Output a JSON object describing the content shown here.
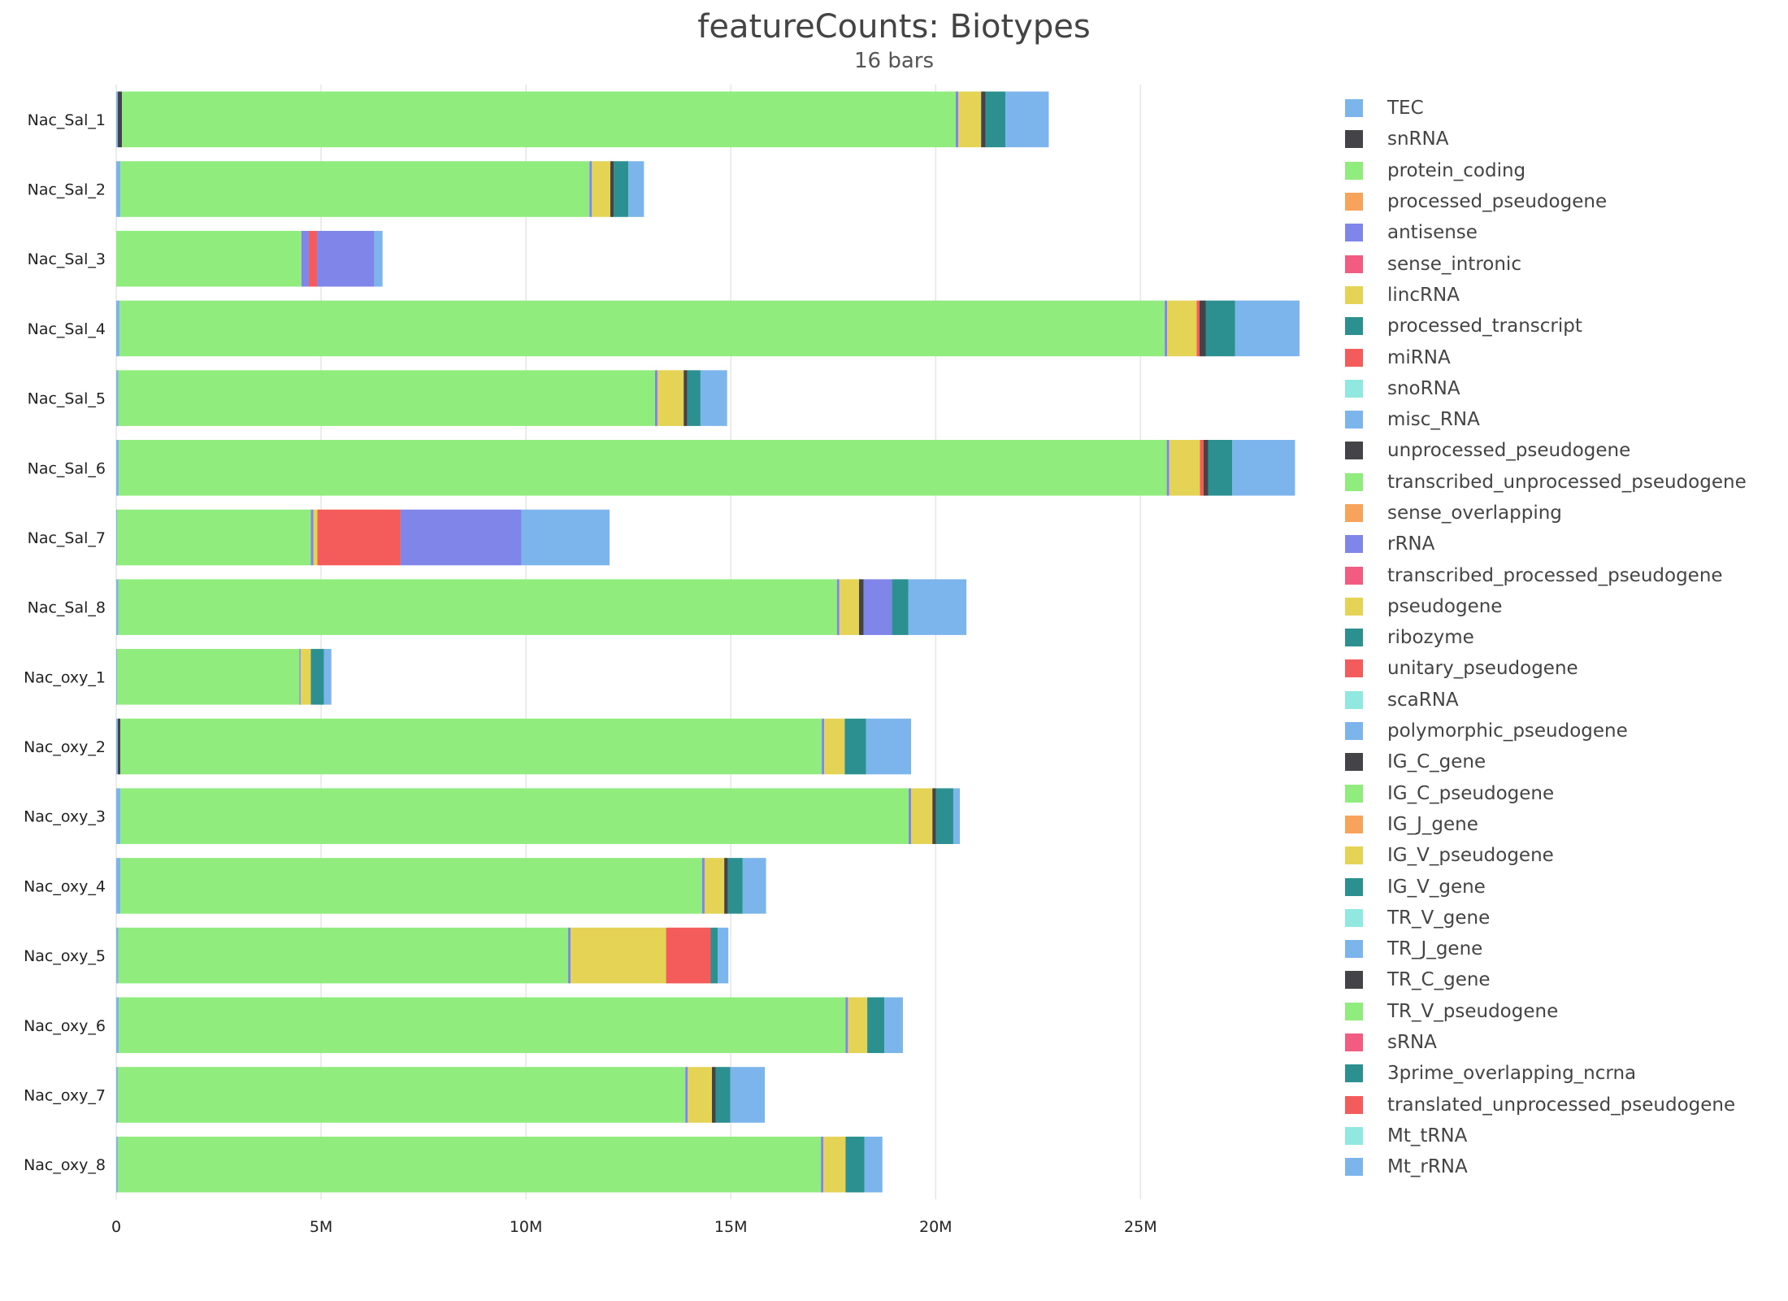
{
  "chart_data": {
    "type": "bar",
    "orientation": "horizontal",
    "stacked": true,
    "title": "featureCounts: Biotypes",
    "subtitle": "16 bars",
    "xlim": [
      0,
      29000000
    ],
    "xticks": [
      {
        "value": 0,
        "label": "0"
      },
      {
        "value": 5000000,
        "label": "5M"
      },
      {
        "value": 10000000,
        "label": "10M"
      },
      {
        "value": 15000000,
        "label": "15M"
      },
      {
        "value": 20000000,
        "label": "20M"
      },
      {
        "value": 25000000,
        "label": "25M"
      }
    ],
    "grid": true,
    "legend_position": "right",
    "categories": [
      "Nac_Sal_1",
      "Nac_Sal_2",
      "Nac_Sal_3",
      "Nac_Sal_4",
      "Nac_Sal_5",
      "Nac_Sal_6",
      "Nac_Sal_7",
      "Nac_Sal_8",
      "Nac_oxy_1",
      "Nac_oxy_2",
      "Nac_oxy_3",
      "Nac_oxy_4",
      "Nac_oxy_5",
      "Nac_oxy_6",
      "Nac_oxy_7",
      "Nac_oxy_8"
    ],
    "series": [
      {
        "name": "TEC",
        "color": "#7cb5ec",
        "values": [
          40000,
          100000,
          0,
          80000,
          50000,
          60000,
          20000,
          50000,
          20000,
          40000,
          100000,
          100000,
          50000,
          60000,
          40000,
          40000
        ]
      },
      {
        "name": "snRNA",
        "color": "#434348",
        "values": [
          100000,
          0,
          0,
          0,
          0,
          0,
          0,
          0,
          0,
          60000,
          0,
          0,
          0,
          0,
          0,
          0
        ]
      },
      {
        "name": "protein_coding",
        "color": "#90ed7d",
        "values": [
          20350000,
          11450000,
          4520000,
          25510000,
          13100000,
          25580000,
          4730000,
          17540000,
          4450000,
          17120000,
          19240000,
          14200000,
          10980000,
          17740000,
          13850000,
          17160000
        ]
      },
      {
        "name": "processed_pseudogene",
        "color": "#f7a35c",
        "values": [
          0,
          0,
          0,
          0,
          0,
          0,
          0,
          0,
          0,
          0,
          0,
          0,
          0,
          0,
          0,
          0
        ]
      },
      {
        "name": "antisense",
        "color": "#8085e9",
        "values": [
          60000,
          60000,
          180000,
          60000,
          60000,
          60000,
          60000,
          60000,
          30000,
          60000,
          60000,
          60000,
          60000,
          60000,
          60000,
          60000
        ]
      },
      {
        "name": "sense_intronic",
        "color": "#f15c80",
        "values": [
          0,
          0,
          0,
          0,
          0,
          0,
          0,
          0,
          0,
          0,
          0,
          0,
          0,
          0,
          0,
          0
        ]
      },
      {
        "name": "lincRNA",
        "color": "#e4d354",
        "values": [
          560000,
          450000,
          0,
          720000,
          640000,
          750000,
          100000,
          480000,
          250000,
          500000,
          520000,
          480000,
          2330000,
          470000,
          590000,
          540000
        ]
      },
      {
        "name": "processed_transcript",
        "color": "#2b908f",
        "values": [
          0,
          0,
          0,
          0,
          0,
          0,
          0,
          0,
          0,
          0,
          0,
          0,
          0,
          0,
          0,
          0
        ]
      },
      {
        "name": "miRNA",
        "color": "#f45b5b",
        "values": [
          0,
          0,
          200000,
          70000,
          0,
          90000,
          2030000,
          0,
          0,
          0,
          0,
          0,
          1090000,
          0,
          0,
          0
        ]
      },
      {
        "name": "snoRNA",
        "color": "#91e8e1",
        "values": [
          0,
          0,
          0,
          0,
          0,
          0,
          0,
          0,
          0,
          0,
          0,
          0,
          0,
          0,
          0,
          0
        ]
      },
      {
        "name": "misc_RNA",
        "color": "#7cb5ec",
        "values": [
          0,
          0,
          0,
          0,
          0,
          0,
          0,
          0,
          0,
          0,
          0,
          0,
          0,
          0,
          0,
          0
        ]
      },
      {
        "name": "unprocessed_pseudogene",
        "color": "#434348",
        "values": [
          110000,
          80000,
          0,
          150000,
          90000,
          110000,
          0,
          110000,
          0,
          0,
          90000,
          90000,
          0,
          0,
          90000,
          0
        ]
      },
      {
        "name": "transcribed_unprocessed_pseudogene",
        "color": "#90ed7d",
        "values": [
          0,
          0,
          0,
          0,
          0,
          0,
          0,
          0,
          0,
          0,
          0,
          0,
          0,
          0,
          0,
          0
        ]
      },
      {
        "name": "sense_overlapping",
        "color": "#f7a35c",
        "values": [
          0,
          0,
          0,
          0,
          0,
          0,
          0,
          0,
          0,
          0,
          0,
          0,
          0,
          0,
          0,
          0
        ]
      },
      {
        "name": "rRNA",
        "color": "#8085e9",
        "values": [
          0,
          0,
          1400000,
          0,
          0,
          0,
          2950000,
          690000,
          0,
          0,
          0,
          0,
          0,
          0,
          0,
          0
        ]
      },
      {
        "name": "transcribed_processed_pseudogene",
        "color": "#f15c80",
        "values": [
          0,
          0,
          0,
          0,
          0,
          0,
          0,
          0,
          0,
          0,
          0,
          0,
          0,
          0,
          0,
          0
        ]
      },
      {
        "name": "pseudogene",
        "color": "#e4d354",
        "values": [
          0,
          0,
          0,
          0,
          0,
          0,
          0,
          0,
          0,
          0,
          0,
          0,
          0,
          0,
          0,
          0
        ]
      },
      {
        "name": "ribozyme",
        "color": "#2b908f",
        "values": [
          0,
          0,
          0,
          0,
          0,
          0,
          0,
          0,
          0,
          0,
          0,
          0,
          0,
          0,
          0,
          0
        ]
      },
      {
        "name": "unitary_pseudogene",
        "color": "#f45b5b",
        "values": [
          0,
          0,
          0,
          0,
          0,
          0,
          0,
          0,
          0,
          0,
          0,
          0,
          0,
          0,
          0,
          0
        ]
      },
      {
        "name": "scaRNA",
        "color": "#91e8e1",
        "values": [
          0,
          0,
          0,
          0,
          0,
          0,
          0,
          0,
          0,
          0,
          0,
          0,
          0,
          0,
          0,
          0
        ]
      },
      {
        "name": "polymorphic_pseudogene",
        "color": "#7cb5ec",
        "values": [
          0,
          0,
          0,
          0,
          0,
          0,
          0,
          0,
          0,
          0,
          0,
          0,
          0,
          0,
          0,
          0
        ]
      },
      {
        "name": "IG_C_gene",
        "color": "#434348",
        "values": [
          0,
          0,
          0,
          0,
          0,
          0,
          0,
          0,
          0,
          0,
          0,
          0,
          0,
          0,
          0,
          0
        ]
      },
      {
        "name": "IG_C_pseudogene",
        "color": "#90ed7d",
        "values": [
          0,
          0,
          0,
          0,
          0,
          0,
          0,
          0,
          0,
          0,
          0,
          0,
          0,
          0,
          0,
          0
        ]
      },
      {
        "name": "IG_J_gene",
        "color": "#f7a35c",
        "values": [
          0,
          0,
          0,
          0,
          0,
          0,
          0,
          0,
          0,
          0,
          0,
          0,
          0,
          0,
          0,
          0
        ]
      },
      {
        "name": "IG_V_pseudogene",
        "color": "#e4d354",
        "values": [
          0,
          0,
          0,
          0,
          0,
          0,
          0,
          0,
          0,
          0,
          0,
          0,
          0,
          0,
          0,
          0
        ]
      },
      {
        "name": "IG_V_gene",
        "color": "#2b908f",
        "values": [
          0,
          0,
          0,
          0,
          0,
          0,
          0,
          0,
          0,
          0,
          0,
          0,
          0,
          0,
          0,
          0
        ]
      },
      {
        "name": "TR_V_gene",
        "color": "#91e8e1",
        "values": [
          0,
          0,
          0,
          0,
          0,
          0,
          0,
          0,
          0,
          0,
          0,
          0,
          0,
          0,
          0,
          0
        ]
      },
      {
        "name": "TR_J_gene",
        "color": "#7cb5ec",
        "values": [
          0,
          0,
          0,
          0,
          0,
          0,
          0,
          0,
          0,
          0,
          0,
          0,
          0,
          0,
          0,
          0
        ]
      },
      {
        "name": "TR_C_gene",
        "color": "#434348",
        "values": [
          0,
          0,
          0,
          0,
          0,
          0,
          0,
          0,
          0,
          0,
          0,
          0,
          0,
          0,
          0,
          0
        ]
      },
      {
        "name": "TR_V_pseudogene",
        "color": "#90ed7d",
        "values": [
          0,
          0,
          0,
          0,
          0,
          0,
          0,
          0,
          0,
          0,
          0,
          0,
          0,
          0,
          0,
          0
        ]
      },
      {
        "name": "sRNA",
        "color": "#f15c80",
        "values": [
          0,
          0,
          0,
          0,
          0,
          0,
          0,
          0,
          0,
          0,
          0,
          0,
          0,
          0,
          0,
          0
        ]
      },
      {
        "name": "3prime_overlapping_ncrna",
        "color": "#2b908f",
        "values": [
          480000,
          360000,
          0,
          720000,
          320000,
          590000,
          0,
          400000,
          320000,
          520000,
          420000,
          360000,
          170000,
          420000,
          360000,
          460000
        ]
      },
      {
        "name": "translated_unprocessed_pseudogene",
        "color": "#f45b5b",
        "values": [
          0,
          0,
          0,
          0,
          0,
          0,
          0,
          0,
          0,
          0,
          0,
          0,
          0,
          0,
          0,
          0
        ]
      },
      {
        "name": "Mt_tRNA",
        "color": "#91e8e1",
        "values": [
          0,
          0,
          0,
          0,
          0,
          0,
          0,
          0,
          0,
          0,
          0,
          0,
          0,
          0,
          0,
          0
        ]
      },
      {
        "name": "Mt_rRNA",
        "color": "#7cb5ec",
        "values": [
          1060000,
          380000,
          200000,
          1570000,
          650000,
          1530000,
          2150000,
          1420000,
          180000,
          1100000,
          160000,
          570000,
          260000,
          450000,
          840000,
          440000
        ]
      }
    ]
  }
}
